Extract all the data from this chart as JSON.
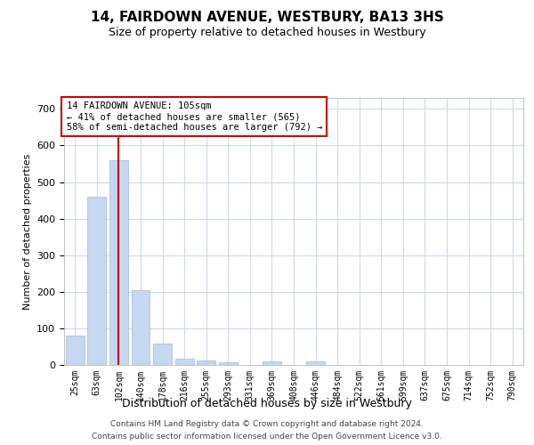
{
  "title": "14, FAIRDOWN AVENUE, WESTBURY, BA13 3HS",
  "subtitle": "Size of property relative to detached houses in Westbury",
  "xlabel": "Distribution of detached houses by size in Westbury",
  "ylabel": "Number of detached properties",
  "footer_line1": "Contains HM Land Registry data © Crown copyright and database right 2024.",
  "footer_line2": "Contains public sector information licensed under the Open Government Licence v3.0.",
  "bar_color": "#c5d8f0",
  "bar_edge_color": "#a0b8d8",
  "grid_color": "#d0d8e8",
  "annotation_box_color": "#cc0000",
  "vline_color": "#cc0000",
  "categories": [
    "25sqm",
    "63sqm",
    "102sqm",
    "140sqm",
    "178sqm",
    "216sqm",
    "255sqm",
    "293sqm",
    "331sqm",
    "369sqm",
    "408sqm",
    "446sqm",
    "484sqm",
    "522sqm",
    "561sqm",
    "599sqm",
    "637sqm",
    "675sqm",
    "714sqm",
    "752sqm",
    "790sqm"
  ],
  "values": [
    80,
    460,
    560,
    205,
    58,
    18,
    13,
    8,
    0,
    10,
    0,
    10,
    0,
    0,
    0,
    0,
    0,
    0,
    0,
    0,
    0
  ],
  "property_bin_index": 2,
  "annotation_text": "14 FAIRDOWN AVENUE: 105sqm\n← 41% of detached houses are smaller (565)\n58% of semi-detached houses are larger (792) →",
  "ylim": [
    0,
    730
  ],
  "yticks": [
    0,
    100,
    200,
    300,
    400,
    500,
    600,
    700
  ]
}
